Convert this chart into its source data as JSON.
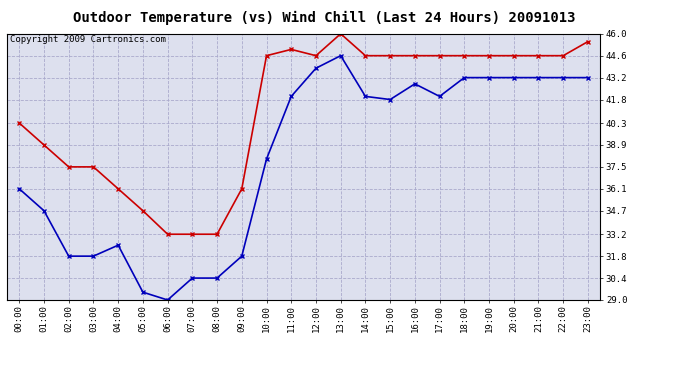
{
  "title": "Outdoor Temperature (vs) Wind Chill (Last 24 Hours) 20091013",
  "copyright": "Copyright 2009 Cartronics.com",
  "x_labels": [
    "00:00",
    "01:00",
    "02:00",
    "03:00",
    "04:00",
    "05:00",
    "06:00",
    "07:00",
    "08:00",
    "09:00",
    "10:00",
    "11:00",
    "12:00",
    "13:00",
    "14:00",
    "15:00",
    "16:00",
    "17:00",
    "18:00",
    "19:00",
    "20:00",
    "21:00",
    "22:00",
    "23:00"
  ],
  "temp_red": [
    40.3,
    38.9,
    37.5,
    37.5,
    36.1,
    34.7,
    33.2,
    33.2,
    33.2,
    36.1,
    44.6,
    45.0,
    44.6,
    46.0,
    44.6,
    44.6,
    44.6,
    44.6,
    44.6,
    44.6,
    44.6,
    44.6,
    44.6,
    45.5
  ],
  "temp_blue": [
    36.1,
    34.7,
    31.8,
    31.8,
    32.5,
    29.5,
    29.0,
    30.4,
    30.4,
    31.8,
    38.0,
    42.0,
    43.8,
    44.6,
    42.0,
    41.8,
    42.8,
    42.0,
    43.2,
    43.2,
    43.2,
    43.2,
    43.2,
    43.2
  ],
  "ylim": [
    29.0,
    46.0
  ],
  "yticks": [
    29.0,
    30.4,
    31.8,
    33.2,
    34.7,
    36.1,
    37.5,
    38.9,
    40.3,
    41.8,
    43.2,
    44.6,
    46.0
  ],
  "red_color": "#cc0000",
  "blue_color": "#0000bb",
  "bg_color": "#ffffff",
  "plot_bg_color": "#dde0ee",
  "grid_color": "#aaaacc",
  "title_fontsize": 10,
  "copyright_fontsize": 6.5
}
